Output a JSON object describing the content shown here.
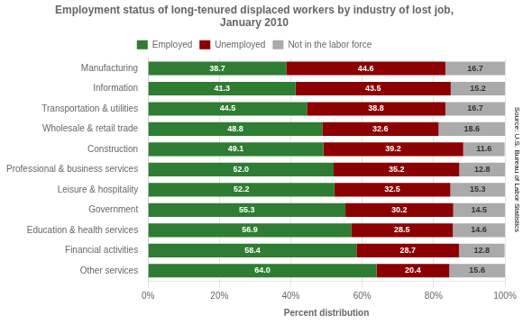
{
  "chart_data": {
    "type": "bar",
    "title": "Employment status of long-tenured displaced workers by industry of lost job,\nJanuary 2010",
    "orientation": "horizontal",
    "stacked": true,
    "data_labels": true,
    "legend": "top",
    "grid": "x",
    "xlabel": "Percent distribution",
    "annotations": [
      "Source: U.S. Bureau of Labor Statistics"
    ],
    "categories": [
      "Manufacturing",
      "Information",
      "Transportation & utilities",
      "Wholesale & retail trade",
      "Construction",
      "Professional & business services",
      "Leisure & hospitality",
      "Government",
      "Education & health services",
      "Financial activities",
      "Other services"
    ],
    "series": [
      {
        "name": "Employed",
        "color": "#2e7d32",
        "values": [
          38.7,
          41.3,
          44.5,
          48.8,
          49.1,
          52.0,
          52.2,
          55.3,
          56.9,
          58.4,
          64.0
        ],
        "value_labels": [
          "38.7",
          "41.3",
          "44.5",
          "48.8",
          "49.1",
          "52.0",
          "52.2",
          "55.3",
          "56.9",
          "58.4",
          "64.0"
        ]
      },
      {
        "name": "Unemployed",
        "color": "#8b0000",
        "values": [
          44.6,
          43.5,
          38.8,
          32.6,
          39.2,
          35.2,
          32.5,
          30.2,
          28.5,
          28.7,
          20.4
        ]
      },
      {
        "name": "Not in the labor force",
        "color": "#aaaaaa",
        "values": [
          16.7,
          15.2,
          16.7,
          18.6,
          11.6,
          12.8,
          15.3,
          14.5,
          14.6,
          12.8,
          15.6
        ]
      }
    ],
    "xlim": [
      0,
      100
    ],
    "xticks": [
      {
        "value": 0,
        "label": "0%"
      },
      {
        "value": 20,
        "label": "20%"
      },
      {
        "value": 40,
        "label": "40%"
      },
      {
        "value": 60,
        "label": "60%"
      },
      {
        "value": 80,
        "label": "80%"
      },
      {
        "value": 100,
        "label": "100%"
      }
    ]
  }
}
